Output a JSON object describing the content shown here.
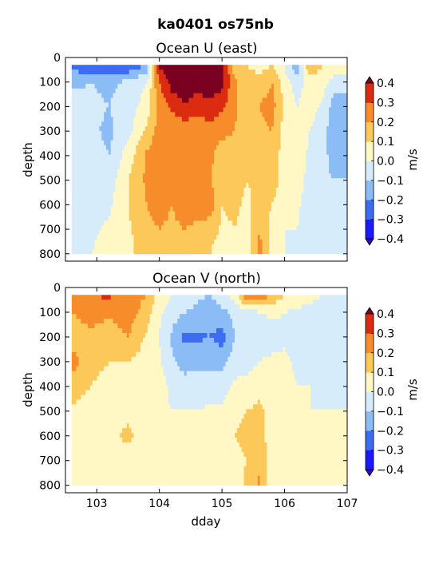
{
  "figure": {
    "suptitle": "ka0401 os75nb"
  },
  "colors": {
    "levels": [
      -0.4,
      -0.3,
      -0.2,
      -0.1,
      0.0,
      0.1,
      0.2,
      0.3,
      0.4
    ],
    "bins": [
      "#1a1aff",
      "#3c6df0",
      "#8cbcf5",
      "#d6ecfb",
      "#fff7c4",
      "#fdc85a",
      "#f68d2a",
      "#db2b11"
    ],
    "under": "#3a00c8",
    "over": "#7a0022"
  },
  "chart_data": [
    {
      "type": "heatmap",
      "title": "Ocean U (east)",
      "xlabel": "",
      "ylabel": "depth",
      "xlim": [
        102.5,
        107.0
      ],
      "ylim": [
        830,
        0
      ],
      "x_ticks": [
        103,
        104,
        105,
        106,
        107
      ],
      "x_tick_labels": [
        "",
        "",
        "",
        "",
        ""
      ],
      "y_ticks": [
        0,
        100,
        200,
        300,
        400,
        500,
        600,
        700,
        800
      ],
      "y_tick_labels": [
        "0",
        "100",
        "200",
        "300",
        "400",
        "500",
        "600",
        "700",
        "800"
      ],
      "colorbar_label": "m/s",
      "colorbar_ticks": [
        "0.4",
        "0.3",
        "0.2",
        "0.1",
        "0.0",
        "−0.1",
        "−0.2",
        "−0.3",
        "−0.4"
      ],
      "x_nodes": [
        102.6,
        102.9,
        103.2,
        103.5,
        103.8,
        104.0,
        104.2,
        104.4,
        104.6,
        104.8,
        105.0,
        105.2,
        105.4,
        105.6,
        105.8,
        106.0,
        106.2,
        106.4,
        106.6,
        106.8,
        107.0
      ],
      "depth_nodes": [
        30,
        100,
        200,
        300,
        400,
        500,
        600,
        700,
        800
      ],
      "values": [
        [
          -0.25,
          -0.12,
          -0.05,
          -0.05,
          -0.04,
          -0.03,
          -0.03,
          -0.02,
          0.0
        ],
        [
          -0.28,
          -0.1,
          -0.08,
          -0.08,
          -0.06,
          -0.04,
          -0.03,
          -0.02,
          0.0
        ],
        [
          -0.3,
          -0.12,
          -0.1,
          -0.12,
          -0.1,
          -0.05,
          -0.02,
          0.02,
          0.03
        ],
        [
          -0.3,
          -0.08,
          -0.05,
          -0.04,
          0.05,
          0.1,
          0.1,
          0.08,
          0.05
        ],
        [
          -0.2,
          0.0,
          0.05,
          0.12,
          0.22,
          0.22,
          0.2,
          0.18,
          0.2
        ],
        [
          0.42,
          0.3,
          0.22,
          0.25,
          0.28,
          0.26,
          0.24,
          0.2,
          0.15
        ],
        [
          0.45,
          0.45,
          0.32,
          0.22,
          0.2,
          0.22,
          0.2,
          0.18,
          0.12
        ],
        [
          0.46,
          0.46,
          0.4,
          0.22,
          0.2,
          0.22,
          0.25,
          0.2,
          0.15
        ],
        [
          0.45,
          0.46,
          0.33,
          0.24,
          0.24,
          0.22,
          0.24,
          0.18,
          0.15
        ],
        [
          0.45,
          0.45,
          0.38,
          0.25,
          0.22,
          0.22,
          0.26,
          0.15,
          0.1
        ],
        [
          0.45,
          0.44,
          0.32,
          0.22,
          0.16,
          0.12,
          0.1,
          0.08,
          0.05
        ],
        [
          0.15,
          0.22,
          0.22,
          0.2,
          0.18,
          0.15,
          0.12,
          0.1,
          0.08
        ],
        [
          0.1,
          0.15,
          0.15,
          0.14,
          0.12,
          0.1,
          0.08,
          0.06,
          0.05
        ],
        [
          0.05,
          0.15,
          0.2,
          0.18,
          0.15,
          0.12,
          0.14,
          0.2,
          0.25
        ],
        [
          0.1,
          0.2,
          0.24,
          0.2,
          0.16,
          0.15,
          0.1,
          0.06,
          0.03
        ],
        [
          0.0,
          0.05,
          0.08,
          0.06,
          0.05,
          0.06,
          0.02,
          0.0,
          0.0
        ],
        [
          -0.2,
          -0.05,
          0.0,
          0.05,
          0.06,
          0.05,
          0.02,
          0.0,
          -0.02
        ],
        [
          0.2,
          0.05,
          0.04,
          0.0,
          -0.02,
          -0.04,
          -0.06,
          -0.05,
          -0.05
        ],
        [
          0.1,
          0.05,
          -0.02,
          -0.05,
          -0.06,
          -0.08,
          -0.06,
          -0.04,
          -0.03
        ],
        [
          0.1,
          -0.05,
          -0.15,
          -0.18,
          -0.15,
          -0.1,
          -0.1,
          -0.08,
          -0.05
        ],
        [
          0.1,
          -0.05,
          -0.15,
          -0.18,
          -0.15,
          -0.1,
          -0.1,
          -0.08,
          -0.05
        ]
      ]
    },
    {
      "type": "heatmap",
      "title": "Ocean V (north)",
      "xlabel": "dday",
      "ylabel": "depth",
      "xlim": [
        102.5,
        107.0
      ],
      "ylim": [
        830,
        0
      ],
      "x_ticks": [
        103,
        104,
        105,
        106,
        107
      ],
      "x_tick_labels": [
        "103",
        "104",
        "105",
        "106",
        "107"
      ],
      "y_ticks": [
        0,
        100,
        200,
        300,
        400,
        500,
        600,
        700,
        800
      ],
      "y_tick_labels": [
        "0",
        "100",
        "200",
        "300",
        "400",
        "500",
        "600",
        "700",
        "800"
      ],
      "colorbar_label": "m/s",
      "colorbar_ticks": [
        "0.4",
        "0.3",
        "0.2",
        "0.1",
        "0.0",
        "−0.1",
        "−0.2",
        "−0.3",
        "−0.4"
      ],
      "x_nodes": [
        102.6,
        102.9,
        103.2,
        103.5,
        103.8,
        104.0,
        104.2,
        104.4,
        104.6,
        104.8,
        105.0,
        105.2,
        105.4,
        105.6,
        105.8,
        106.0,
        106.2,
        106.4,
        106.6,
        106.8,
        107.0
      ],
      "depth_nodes": [
        30,
        100,
        200,
        300,
        400,
        500,
        600,
        700,
        800
      ],
      "values": [
        [
          0.25,
          0.2,
          0.15,
          0.25,
          0.15,
          0.08,
          0.04,
          0.02,
          0.0
        ],
        [
          0.3,
          0.24,
          0.18,
          0.12,
          0.1,
          0.06,
          0.04,
          0.02,
          0.0
        ],
        [
          0.32,
          0.22,
          0.14,
          0.1,
          0.08,
          0.05,
          0.08,
          0.04,
          0.02
        ],
        [
          0.25,
          0.26,
          0.2,
          0.1,
          0.06,
          0.08,
          0.12,
          0.06,
          0.02
        ],
        [
          0.2,
          0.15,
          0.08,
          0.06,
          0.04,
          0.04,
          0.04,
          0.02,
          0.02
        ],
        [
          0.05,
          0.02,
          0.0,
          0.02,
          0.05,
          0.03,
          0.02,
          0.0,
          0.0
        ],
        [
          0.0,
          -0.05,
          -0.12,
          -0.08,
          -0.03,
          0.0,
          0.03,
          0.02,
          0.0
        ],
        [
          -0.05,
          -0.1,
          -0.22,
          -0.15,
          -0.05,
          0.0,
          0.02,
          0.0,
          0.0
        ],
        [
          -0.08,
          -0.12,
          -0.22,
          -0.12,
          -0.06,
          0.0,
          0.02,
          0.0,
          0.0
        ],
        [
          -0.1,
          -0.15,
          -0.2,
          -0.12,
          -0.05,
          0.02,
          0.04,
          0.03,
          0.0
        ],
        [
          -0.05,
          -0.12,
          -0.24,
          -0.14,
          -0.05,
          0.02,
          0.06,
          0.04,
          0.02
        ],
        [
          0.05,
          -0.08,
          -0.1,
          -0.05,
          0.02,
          0.08,
          0.1,
          0.08,
          0.06
        ],
        [
          0.3,
          -0.05,
          -0.1,
          -0.05,
          0.04,
          0.1,
          0.12,
          0.1,
          0.12
        ],
        [
          0.28,
          0.0,
          -0.06,
          0.0,
          0.08,
          0.12,
          0.14,
          0.18,
          0.22
        ],
        [
          0.2,
          0.02,
          -0.04,
          0.02,
          0.05,
          0.06,
          0.05,
          0.04,
          0.03
        ],
        [
          0.1,
          0.0,
          -0.02,
          0.02,
          0.03,
          0.02,
          0.02,
          0.0,
          0.0
        ],
        [
          0.05,
          -0.02,
          -0.05,
          -0.02,
          0.0,
          0.0,
          0.0,
          0.0,
          0.0
        ],
        [
          0.03,
          -0.02,
          -0.05,
          -0.03,
          0.0,
          0.0,
          0.0,
          0.0,
          0.0
        ],
        [
          0.0,
          -0.05,
          -0.08,
          -0.05,
          -0.02,
          0.0,
          0.0,
          0.0,
          0.0
        ],
        [
          0.0,
          -0.05,
          -0.08,
          -0.05,
          -0.02,
          0.0,
          0.0,
          0.0,
          0.0
        ],
        [
          0.0,
          -0.05,
          -0.08,
          -0.05,
          -0.02,
          0.0,
          0.0,
          0.0,
          0.0
        ]
      ]
    }
  ]
}
